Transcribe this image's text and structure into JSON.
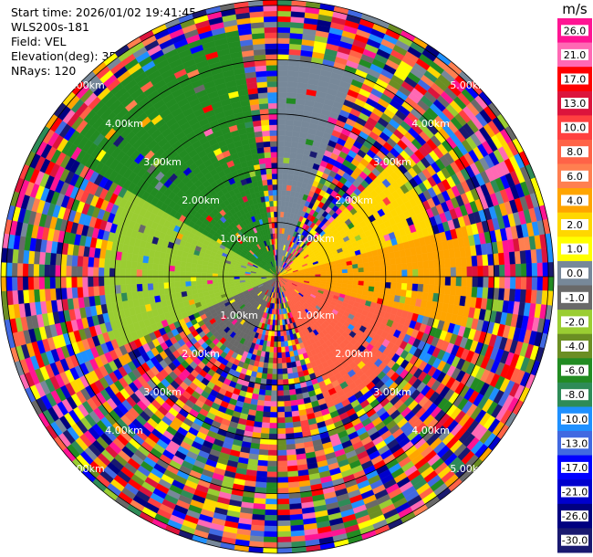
{
  "header": {
    "start_time": "Start time: 2026/01/02 19:41:45",
    "instrument": "WLS200s-181",
    "field": "Field: VEL",
    "elevation": "Elevation(deg): 35.00",
    "nrays": "NRays: 120"
  },
  "chart_data": {
    "type": "ppi",
    "instrument": "WLS200s-181",
    "field": "VEL",
    "elevation_deg": 35.0,
    "n_rays": 120,
    "range_rings_km": [
      1.0,
      2.0,
      3.0,
      4.0,
      5.0
    ],
    "range_ring_labels": [
      "1.00km",
      "2.00km",
      "3.00km",
      "4.00km",
      "5.00km"
    ],
    "max_range_km": 5.1,
    "colorbar": {
      "unit": "m/s",
      "ticks": [
        "26.0",
        "21.0",
        "17.0",
        "13.0",
        "10.0",
        "8.0",
        "6.0",
        "4.0",
        "2.0",
        "1.0",
        "0.0",
        "-1.0",
        "-2.0",
        "-4.0",
        "-6.0",
        "-8.0",
        "-10.0",
        "-13.0",
        "-17.0",
        "-21.0",
        "-26.0",
        "-30.0"
      ],
      "colors": [
        "#ff1493",
        "#ff69b4",
        "#ff0000",
        "#dc143c",
        "#ff4040",
        "#ff6347",
        "#ff7f50",
        "#ffa500",
        "#ffd700",
        "#ffff00",
        "#778899",
        "#696969",
        "#9acd32",
        "#6b8e23",
        "#228b22",
        "#2e8b57",
        "#1e90ff",
        "#4169e1",
        "#0000ff",
        "#0000cd",
        "#000080",
        "#191970"
      ]
    },
    "velocity_sectors": [
      {
        "az_start": 300,
        "az_end": 350,
        "r_max_km": 4.6,
        "value": -6.0
      },
      {
        "az_start": 245,
        "az_end": 300,
        "r_max_km": 3.2,
        "value": -2.0
      },
      {
        "az_start": 200,
        "az_end": 245,
        "r_max_km": 1.6,
        "value": -1.0
      },
      {
        "az_start": 0,
        "az_end": 20,
        "r_max_km": 4.0,
        "value": 0.0
      },
      {
        "az_start": 45,
        "az_end": 75,
        "r_max_km": 3.0,
        "value": 2.0
      },
      {
        "az_start": 75,
        "az_end": 105,
        "r_max_km": 3.6,
        "value": 4.0
      },
      {
        "az_start": 105,
        "az_end": 160,
        "r_max_km": 2.6,
        "value": 8.0
      }
    ]
  }
}
